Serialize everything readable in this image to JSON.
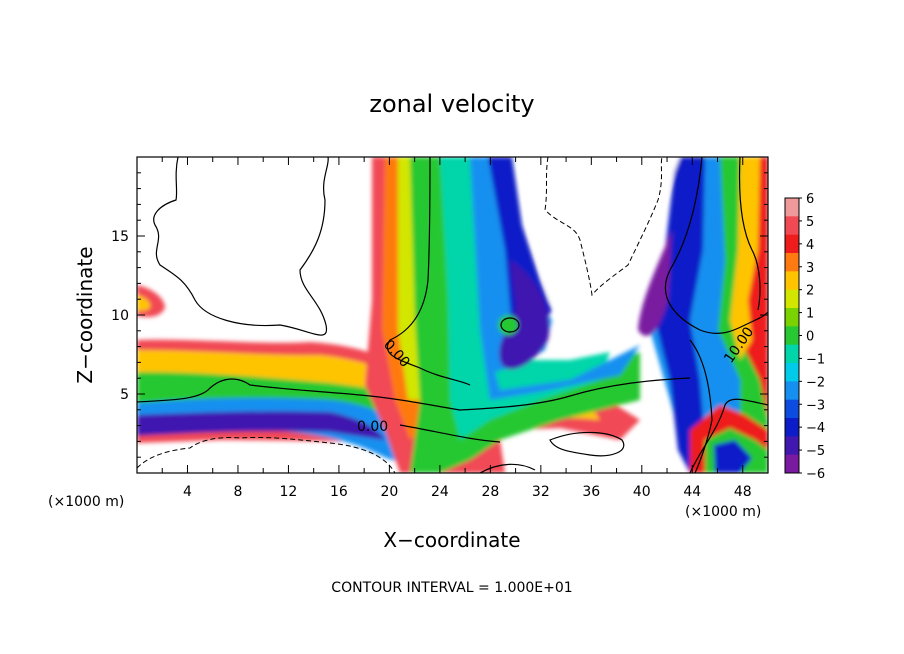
{
  "chart_data": {
    "type": "heatmap",
    "title": "zonal velocity",
    "xlabel": "X−coordinate",
    "ylabel": "Z−coordinate",
    "x_unit": "(×1000 m)",
    "z_unit": "(×1000 m)",
    "xlim": [
      0,
      50
    ],
    "ylim": [
      0,
      20
    ],
    "x_ticks": [
      "4",
      "8",
      "12",
      "16",
      "20",
      "24",
      "28",
      "32",
      "36",
      "40",
      "44",
      "48"
    ],
    "y_ticks": [
      "5",
      "10",
      "15"
    ],
    "colorbar": {
      "ticks": [
        "6",
        "5",
        "4",
        "3",
        "2",
        "1",
        "0",
        "−1",
        "−2",
        "−3",
        "−4",
        "−5",
        "−6"
      ],
      "colors": [
        "#ee9a9a",
        "#f14a54",
        "#ee1c1c",
        "#ff7a10",
        "#ffc400",
        "#d2e600",
        "#7ad200",
        "#28c832",
        "#00d6aa",
        "#00cbe8",
        "#1690f0",
        "#0d4ce0",
        "#0c1cc8",
        "#4018b0",
        "#7a1aa0"
      ]
    },
    "contour_labels": [
      "0.00",
      "0.00",
      "10.00"
    ],
    "contour_interval": "CONTOUR INTERVAL = 1.000E+01"
  }
}
